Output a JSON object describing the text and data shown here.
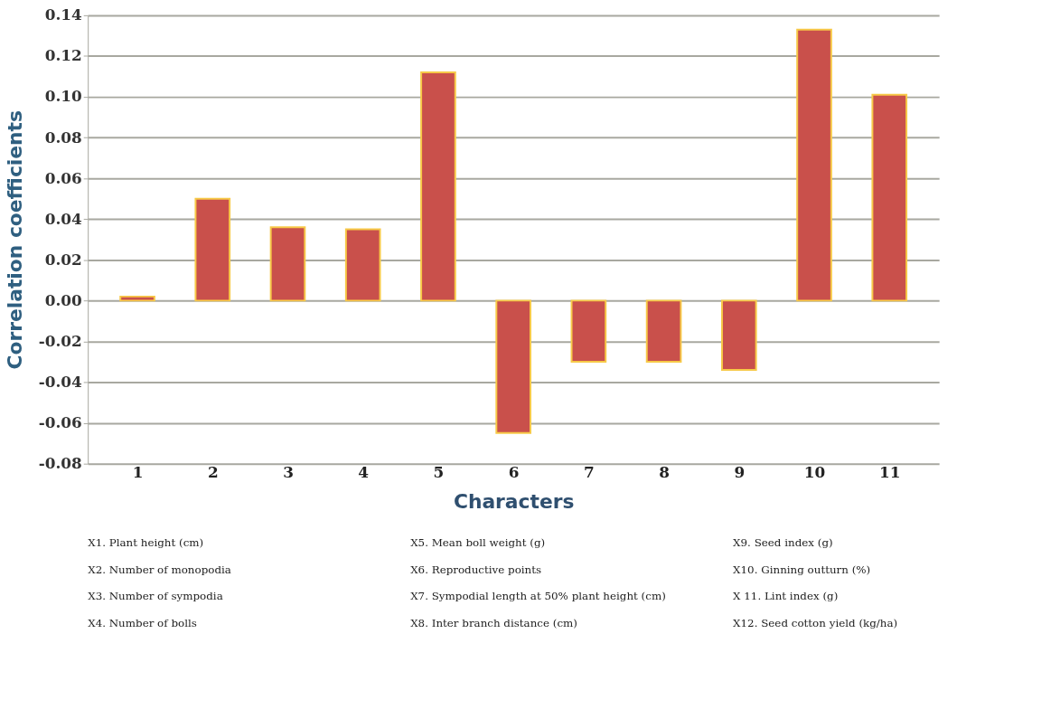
{
  "chart_data": {
    "type": "bar",
    "xlabel": "Characters",
    "ylabel": "Correlation coefficients",
    "categories": [
      "1",
      "2",
      "3",
      "4",
      "5",
      "6",
      "7",
      "8",
      "9",
      "10",
      "11"
    ],
    "values": [
      0.002,
      0.05,
      0.036,
      0.035,
      0.112,
      -0.065,
      -0.03,
      -0.03,
      -0.034,
      0.133,
      0.101
    ],
    "color": "#c9504b",
    "ylim": [
      -0.08,
      0.14
    ],
    "yticks": [
      {
        "value": -0.08,
        "label": "-0.08"
      },
      {
        "value": -0.06,
        "label": "-0.06"
      },
      {
        "value": -0.04,
        "label": "-0.04"
      },
      {
        "value": -0.02,
        "label": "-0.02"
      },
      {
        "value": 0,
        "label": "0.00"
      },
      {
        "value": 0.02,
        "label": "0.02"
      },
      {
        "value": 0.04,
        "label": "0.04"
      },
      {
        "value": 0.06,
        "label": "0.06"
      },
      {
        "value": 0.08,
        "label": "0.08"
      },
      {
        "value": 0.1,
        "label": "0.10"
      },
      {
        "value": 0.12,
        "label": "0.12"
      },
      {
        "value": 0.14,
        "label": "0.14"
      }
    ],
    "grid": "y",
    "annotations": [
      "X1. Plant height (cm)",
      "X2. Number of monopodia",
      "X3. Number of sympodia",
      "X4.  Number of bolls",
      "X5. Mean boll weight (g)",
      "X6. Reproductive points",
      "X7. Sympodial length at 50% plant height (cm)",
      "X8. Inter branch distance (cm)",
      "X9. Seed index (g)",
      "X10. Ginning outturn (%)",
      "X 11. Lint index (g)",
      "X12. Seed cotton yield (kg/ha)"
    ]
  }
}
